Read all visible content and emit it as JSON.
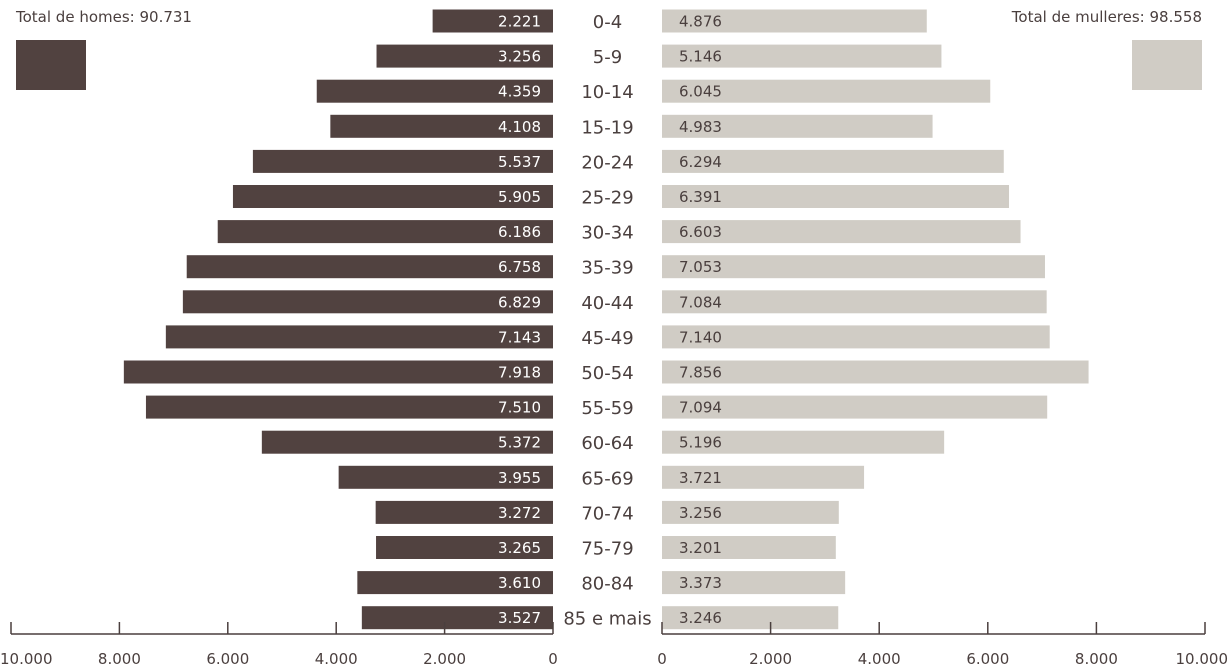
{
  "legend": {
    "men_total": "Total de homes: 90.731",
    "women_total": "Total de mulleres: 98.558"
  },
  "colors": {
    "men": "#514240",
    "women": "#d0ccc5",
    "text": "#4a3f3e",
    "axis": "#4a3f3e"
  },
  "chart_data": {
    "type": "bar",
    "orientation": "horizontal-population-pyramid",
    "categories": [
      "0-4",
      "5-9",
      "10-14",
      "15-19",
      "20-24",
      "25-29",
      "30-34",
      "35-39",
      "40-44",
      "45-49",
      "50-54",
      "55-59",
      "60-64",
      "65-69",
      "70-74",
      "75-79",
      "80-84",
      "85 e mais"
    ],
    "series": [
      {
        "name": "Total de homes: 90.731",
        "side": "left",
        "values": [
          2221,
          3256,
          4359,
          4108,
          5537,
          5905,
          6186,
          6758,
          6829,
          7143,
          7918,
          7510,
          5372,
          3955,
          3272,
          3265,
          3610,
          3527
        ],
        "labels": [
          "2.221",
          "3.256",
          "4.359",
          "4.108",
          "5.537",
          "5.905",
          "6.186",
          "6.758",
          "6.829",
          "7.143",
          "7.918",
          "7.510",
          "5.372",
          "3.955",
          "3.272",
          "3.265",
          "3.610",
          "3.527"
        ]
      },
      {
        "name": "Total de mulleres: 98.558",
        "side": "right",
        "values": [
          4876,
          5146,
          6045,
          4983,
          6294,
          6391,
          6603,
          7053,
          7084,
          7140,
          7856,
          7094,
          5196,
          3721,
          3256,
          3201,
          3373,
          3246
        ],
        "labels": [
          "4.876",
          "5.146",
          "6.045",
          "4.983",
          "6.294",
          "6.391",
          "6.603",
          "7.053",
          "7.084",
          "7.140",
          "7.856",
          "7.094",
          "5.196",
          "3.721",
          "3.256",
          "3.201",
          "3.373",
          "3.246"
        ]
      }
    ],
    "xlim": [
      0,
      10000
    ],
    "left_ticks": [
      {
        "value": 10000,
        "label": "10.000"
      },
      {
        "value": 8000,
        "label": "8.000"
      },
      {
        "value": 6000,
        "label": "6.000"
      },
      {
        "value": 4000,
        "label": "4.000"
      },
      {
        "value": 2000,
        "label": "2.000"
      },
      {
        "value": 0,
        "label": "0"
      }
    ],
    "right_ticks": [
      {
        "value": 0,
        "label": "0"
      },
      {
        "value": 2000,
        "label": "2.000"
      },
      {
        "value": 4000,
        "label": "4.000"
      },
      {
        "value": 6000,
        "label": "6.000"
      },
      {
        "value": 8000,
        "label": "8.000"
      },
      {
        "value": 10000,
        "label": "10.000"
      }
    ],
    "grid": false,
    "legend_position": "top"
  }
}
